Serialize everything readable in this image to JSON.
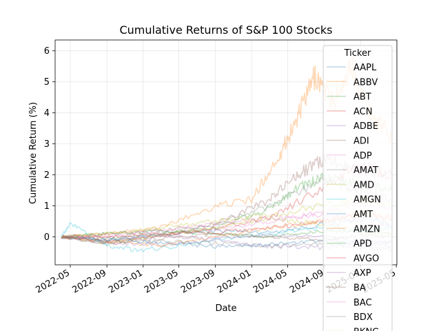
{
  "chart_data": {
    "type": "line",
    "title": "Cumulative Returns of S&P 100 Stocks",
    "xlabel": "Date",
    "ylabel": "Cumulative Return (%)",
    "x_range": [
      "2022-03-11",
      "2025-05-03"
    ],
    "x_data_range": [
      "2022-04-01",
      "2025-04-15"
    ],
    "xlim": [
      -0.9,
      6.35
    ],
    "x_ticks": [
      "2022-05",
      "2022-09",
      "2023-01",
      "2023-05",
      "2023-09",
      "2024-01",
      "2024-05",
      "2024-09",
      "2025-01",
      "2025-05"
    ],
    "y_ticks": [
      0,
      1,
      2,
      3,
      4,
      5,
      6
    ],
    "grid": true,
    "line_alpha": 0.3,
    "legend": {
      "title": "Ticker",
      "placement": "top-right"
    },
    "colors": [
      "#1f77b4",
      "#ff7f0e",
      "#2ca02c",
      "#d62728",
      "#9467bd",
      "#8c564b",
      "#e377c2",
      "#7f7f7f",
      "#bcbd22",
      "#17becf"
    ],
    "series": [
      {
        "name": "AAPL",
        "x": [
          "2022-04-01",
          "2022-09-01",
          "2023-03-01",
          "2023-09-01",
          "2024-03-01",
          "2024-09-01",
          "2025-02-01",
          "2025-04-15"
        ],
        "values": [
          0,
          -0.1,
          0.05,
          0.2,
          0.15,
          0.4,
          0.6,
          0.35
        ]
      },
      {
        "name": "ABBV",
        "x": [
          "2022-04-01",
          "2022-09-01",
          "2023-03-01",
          "2023-09-01",
          "2024-01-01",
          "2024-04-01",
          "2024-06-01",
          "2024-08-01",
          "2024-10-01",
          "2024-12-01",
          "2025-02-01",
          "2025-04-15"
        ],
        "values": [
          0,
          0.1,
          0.3,
          1.0,
          1.2,
          2.6,
          3.8,
          5.2,
          4.3,
          5.5,
          4.0,
          3.2
        ]
      },
      {
        "name": "ABT",
        "x": [
          "2022-04-01",
          "2022-09-01",
          "2023-03-01",
          "2023-09-01",
          "2024-03-01",
          "2024-06-01",
          "2024-09-01",
          "2025-01-01",
          "2025-04-15"
        ],
        "values": [
          0,
          -0.05,
          0.1,
          0.3,
          0.9,
          1.6,
          1.9,
          1.7,
          1.5
        ]
      },
      {
        "name": "ACN",
        "x": [
          "2022-04-01",
          "2022-09-01",
          "2023-03-01",
          "2023-09-01",
          "2024-03-01",
          "2024-09-01",
          "2025-01-01",
          "2025-04-15"
        ],
        "values": [
          0,
          -0.15,
          0.0,
          0.3,
          0.6,
          1.6,
          2.3,
          1.9
        ]
      },
      {
        "name": "ADBE",
        "x": [
          "2022-04-01",
          "2022-09-01",
          "2023-03-01",
          "2023-09-01",
          "2024-03-01",
          "2024-09-01",
          "2025-01-01",
          "2025-04-15"
        ],
        "values": [
          0,
          -0.2,
          -0.25,
          -0.1,
          -0.3,
          -0.35,
          -0.2,
          -0.3
        ]
      },
      {
        "name": "ADI",
        "x": [
          "2022-04-01",
          "2022-09-01",
          "2023-03-01",
          "2023-09-01",
          "2024-03-01",
          "2024-06-01",
          "2024-09-01",
          "2025-01-01",
          "2025-04-15"
        ],
        "values": [
          0,
          0.1,
          0.2,
          0.4,
          1.2,
          2.0,
          2.5,
          2.2,
          2.0
        ]
      },
      {
        "name": "ADP",
        "x": [
          "2022-04-01",
          "2022-09-01",
          "2023-03-01",
          "2023-09-01",
          "2024-03-01",
          "2024-09-01",
          "2025-01-01",
          "2025-04-15"
        ],
        "values": [
          0,
          0.0,
          0.1,
          0.25,
          0.5,
          0.8,
          1.1,
          0.9
        ]
      },
      {
        "name": "AMAT",
        "x": [
          "2022-04-01",
          "2022-09-01",
          "2023-03-01",
          "2023-09-01",
          "2024-03-01",
          "2024-09-01",
          "2025-01-01",
          "2025-04-15"
        ],
        "values": [
          0,
          -0.2,
          0.1,
          0.4,
          1.0,
          1.8,
          1.5,
          1.2
        ]
      },
      {
        "name": "AMD",
        "x": [
          "2022-04-01",
          "2022-09-01",
          "2023-03-01",
          "2023-09-01",
          "2024-03-01",
          "2024-09-01",
          "2025-01-01",
          "2025-04-15"
        ],
        "values": [
          0,
          -0.2,
          0.05,
          0.3,
          0.6,
          0.4,
          0.2,
          0.1
        ]
      },
      {
        "name": "AMGN",
        "x": [
          "2022-04-01",
          "2022-05-01",
          "2022-09-01",
          "2023-01-01",
          "2023-09-01",
          "2024-03-01",
          "2024-09-01",
          "2025-01-01",
          "2025-04-15"
        ],
        "values": [
          0,
          0.45,
          -0.3,
          -0.45,
          -0.1,
          0.1,
          0.3,
          0.2,
          0.3
        ]
      },
      {
        "name": "AMT",
        "x": [
          "2022-04-01",
          "2022-09-01",
          "2023-03-01",
          "2023-09-01",
          "2024-03-01",
          "2024-09-01",
          "2025-01-01",
          "2025-04-15"
        ],
        "values": [
          0,
          -0.1,
          -0.2,
          -0.3,
          -0.25,
          -0.1,
          -0.2,
          -0.15
        ]
      },
      {
        "name": "AMZN",
        "x": [
          "2022-04-01",
          "2022-09-01",
          "2023-03-01",
          "2023-09-01",
          "2024-03-01",
          "2024-09-01",
          "2025-01-01",
          "2025-04-15"
        ],
        "values": [
          0,
          -0.15,
          -0.3,
          0.0,
          0.3,
          0.5,
          0.8,
          0.6
        ]
      },
      {
        "name": "APD",
        "x": [
          "2022-04-01",
          "2022-09-01",
          "2023-03-01",
          "2023-09-01",
          "2024-03-01",
          "2024-09-01",
          "2025-01-01",
          "2025-04-15"
        ],
        "values": [
          0,
          0.1,
          0.2,
          0.1,
          0.0,
          0.2,
          0.15,
          0.1
        ]
      },
      {
        "name": "AVGO",
        "x": [
          "2022-04-01",
          "2022-09-01",
          "2023-03-01",
          "2023-09-01",
          "2024-03-01",
          "2024-09-01",
          "2025-01-01",
          "2025-04-15"
        ],
        "values": [
          0,
          0.0,
          0.1,
          0.15,
          0.3,
          0.5,
          0.7,
          0.6
        ]
      },
      {
        "name": "AXP",
        "x": [
          "2022-04-01",
          "2022-09-01",
          "2023-03-01",
          "2023-09-01",
          "2024-03-01",
          "2024-09-01",
          "2025-01-01",
          "2025-04-15"
        ],
        "values": [
          0,
          -0.1,
          0.0,
          -0.05,
          0.05,
          0.0,
          -0.1,
          -0.2
        ]
      },
      {
        "name": "BA",
        "x": [
          "2022-04-01",
          "2022-09-01",
          "2023-03-01",
          "2023-09-01",
          "2024-03-01",
          "2024-09-01",
          "2025-01-01",
          "2025-04-15"
        ],
        "values": [
          0,
          -0.2,
          -0.05,
          0.1,
          0.0,
          -0.1,
          0.05,
          0.0
        ]
      },
      {
        "name": "BAC",
        "x": [
          "2022-04-01",
          "2022-09-01",
          "2023-03-01",
          "2023-09-01",
          "2024-03-01",
          "2024-09-01",
          "2025-01-01",
          "2025-04-15"
        ],
        "values": [
          0,
          0.05,
          0.2,
          0.4,
          0.6,
          0.7,
          0.5,
          0.4
        ]
      },
      {
        "name": "BDX",
        "x": [
          "2022-04-01",
          "2022-09-01",
          "2023-03-01",
          "2023-09-01",
          "2024-03-01",
          "2024-09-01",
          "2025-01-01",
          "2025-04-15"
        ],
        "values": [
          0,
          -0.1,
          -0.15,
          -0.2,
          -0.3,
          -0.2,
          -0.35,
          -0.4
        ]
      },
      {
        "name": "BKNG",
        "x": [
          "2022-04-01",
          "2022-09-01",
          "2023-03-01",
          "2023-09-01",
          "2024-03-01",
          "2024-09-01",
          "2025-01-01",
          "2025-04-15"
        ],
        "values": [
          0,
          0.1,
          0.3,
          0.5,
          0.7,
          1.0,
          1.2,
          1.0
        ]
      }
    ]
  }
}
